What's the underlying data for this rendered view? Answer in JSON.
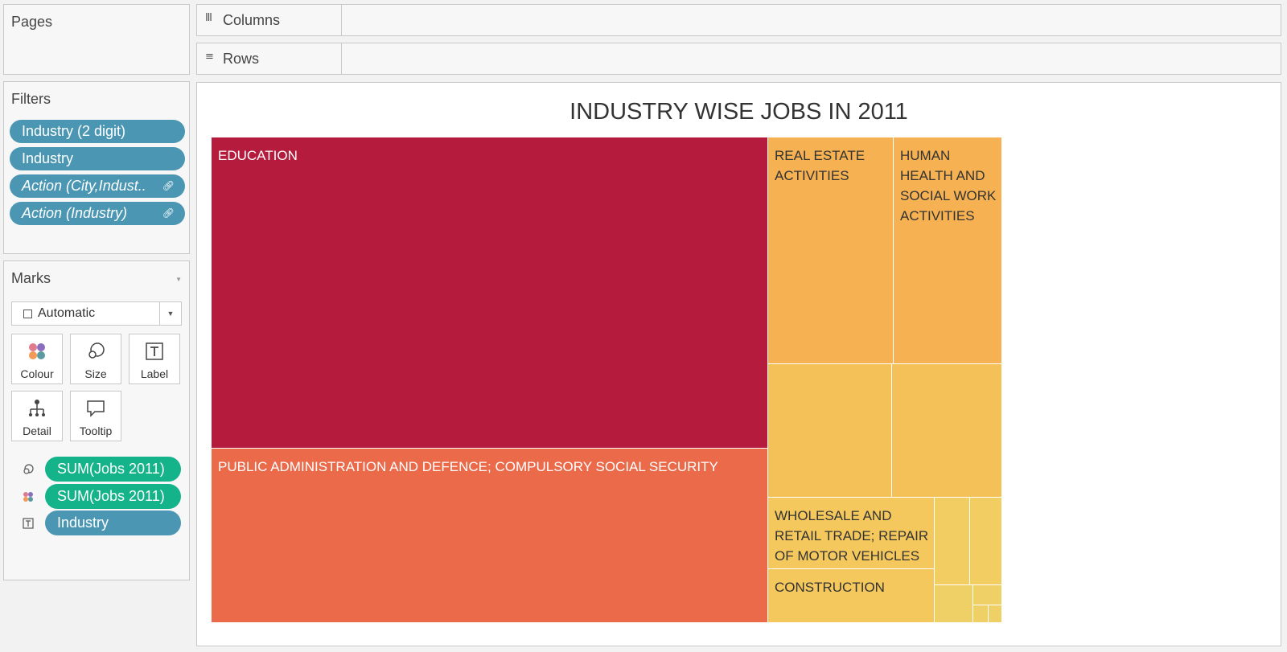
{
  "pages": {
    "title": "Pages"
  },
  "filters": {
    "title": "Filters",
    "items": [
      {
        "label": "Industry (2 digit)",
        "italic": false,
        "linked": false
      },
      {
        "label": "Industry",
        "italic": false,
        "linked": false
      },
      {
        "label": "Action (City,Indust..",
        "italic": true,
        "linked": true
      },
      {
        "label": "Action (Industry)",
        "italic": true,
        "linked": true
      }
    ]
  },
  "marks": {
    "title": "Marks",
    "mark_type": "Automatic",
    "cards": {
      "colour": "Colour",
      "size": "Size",
      "label": "Label",
      "detail": "Detail",
      "tooltip": "Tooltip"
    },
    "fields": [
      {
        "icon": "size-icon",
        "label": "SUM(Jobs 2011)",
        "color": "#14b38a"
      },
      {
        "icon": "colour-icon",
        "label": "SUM(Jobs 2011)",
        "color": "#14b38a"
      },
      {
        "icon": "label-icon",
        "label": "Industry",
        "color": "#4a96b3"
      }
    ]
  },
  "shelves": {
    "columns": "Columns",
    "rows": "Rows"
  },
  "colors": {
    "dimension_pill": "#4a96b3",
    "measure_pill": "#14b38a"
  },
  "chart_data": {
    "type": "treemap",
    "title": "INDUSTRY WISE JOBS IN 2011",
    "items": [
      {
        "label": "EDUCATION",
        "color": "#b51b3d"
      },
      {
        "label": "PUBLIC ADMINISTRATION AND DEFENCE; COMPULSORY SOCIAL SECURITY",
        "color": "#ea6a4a"
      },
      {
        "label": "REAL ESTATE ACTIVITIES",
        "color": "#f5b152"
      },
      {
        "label": "HUMAN HEALTH AND SOCIAL WORK ACTIVITIES",
        "color": "#f5b152"
      },
      {
        "label": "",
        "color": "#f4c159"
      },
      {
        "label": "",
        "color": "#f4c159"
      },
      {
        "label": "WHOLESALE AND RETAIL TRADE; REPAIR OF MOTOR VEHICLES",
        "color": "#f4c85d"
      },
      {
        "label": "CONSTRUCTION",
        "color": "#f4c85d"
      },
      {
        "label": "",
        "color": "#f1cd62"
      },
      {
        "label": "",
        "color": "#f1cd62"
      },
      {
        "label": "",
        "color": "#efd067"
      },
      {
        "label": "",
        "color": "#efd067"
      },
      {
        "label": "",
        "color": "#efd067"
      },
      {
        "label": "",
        "color": "#efd067"
      }
    ]
  }
}
